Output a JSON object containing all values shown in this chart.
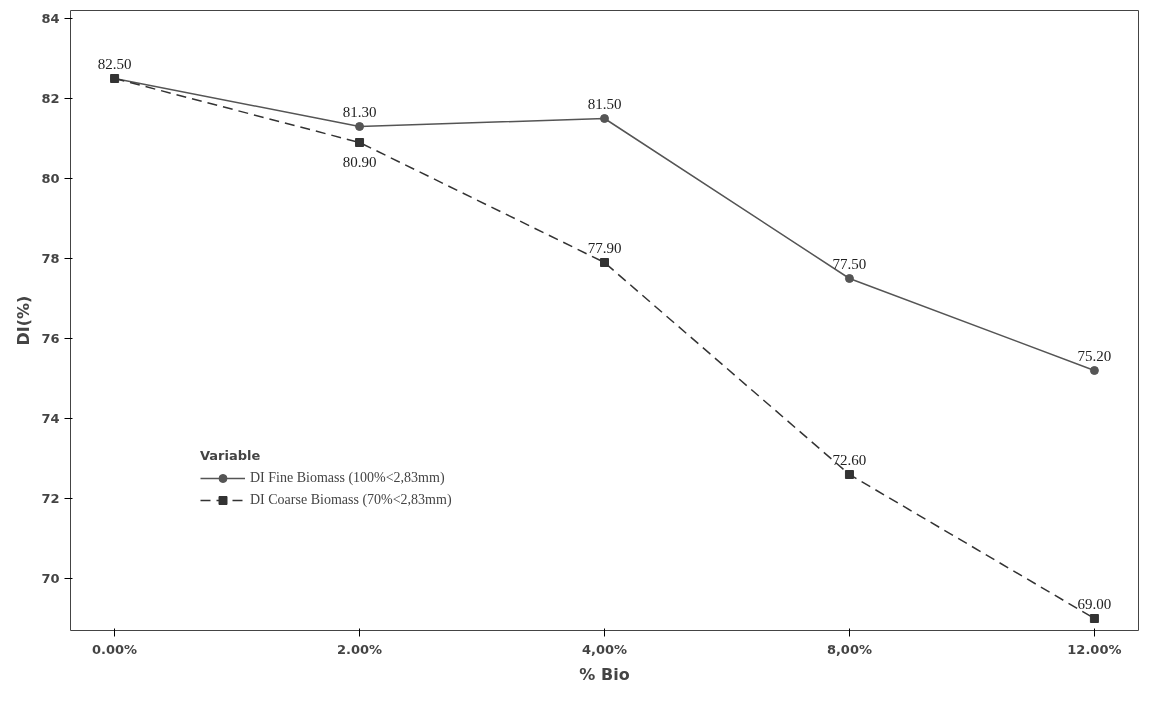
{
  "chart_data": {
    "type": "line",
    "xlabel": "% Bio",
    "ylabel": "DI(%)",
    "categories": [
      "0.00%",
      "2.00%",
      "4,00%",
      "8,00%",
      "12.00%"
    ],
    "ylim": [
      68.7,
      84.2
    ],
    "yticks": [
      70,
      72,
      74,
      76,
      78,
      80,
      82,
      84
    ],
    "grid": false,
    "legend": "bottom left",
    "legend_title": "Variable",
    "series": [
      {
        "name": "DI Fine Biomass (100%<2,83mm)",
        "color": "#555555",
        "marker": "circle",
        "line_style": "solid",
        "values": [
          82.5,
          81.3,
          81.5,
          77.5,
          75.2
        ],
        "value_labels": [
          "82.50",
          "81.30",
          "81.50",
          "77.50",
          "75.20"
        ]
      },
      {
        "name": "DI Coarse Biomass (70%<2,83mm)",
        "color": "#333333",
        "marker": "square",
        "line_style": "dashed",
        "values": [
          82.5,
          80.9,
          77.9,
          72.6,
          69.0
        ],
        "value_labels": [
          null,
          "80.90",
          "77.90",
          "72.60",
          "69.00"
        ]
      }
    ]
  }
}
